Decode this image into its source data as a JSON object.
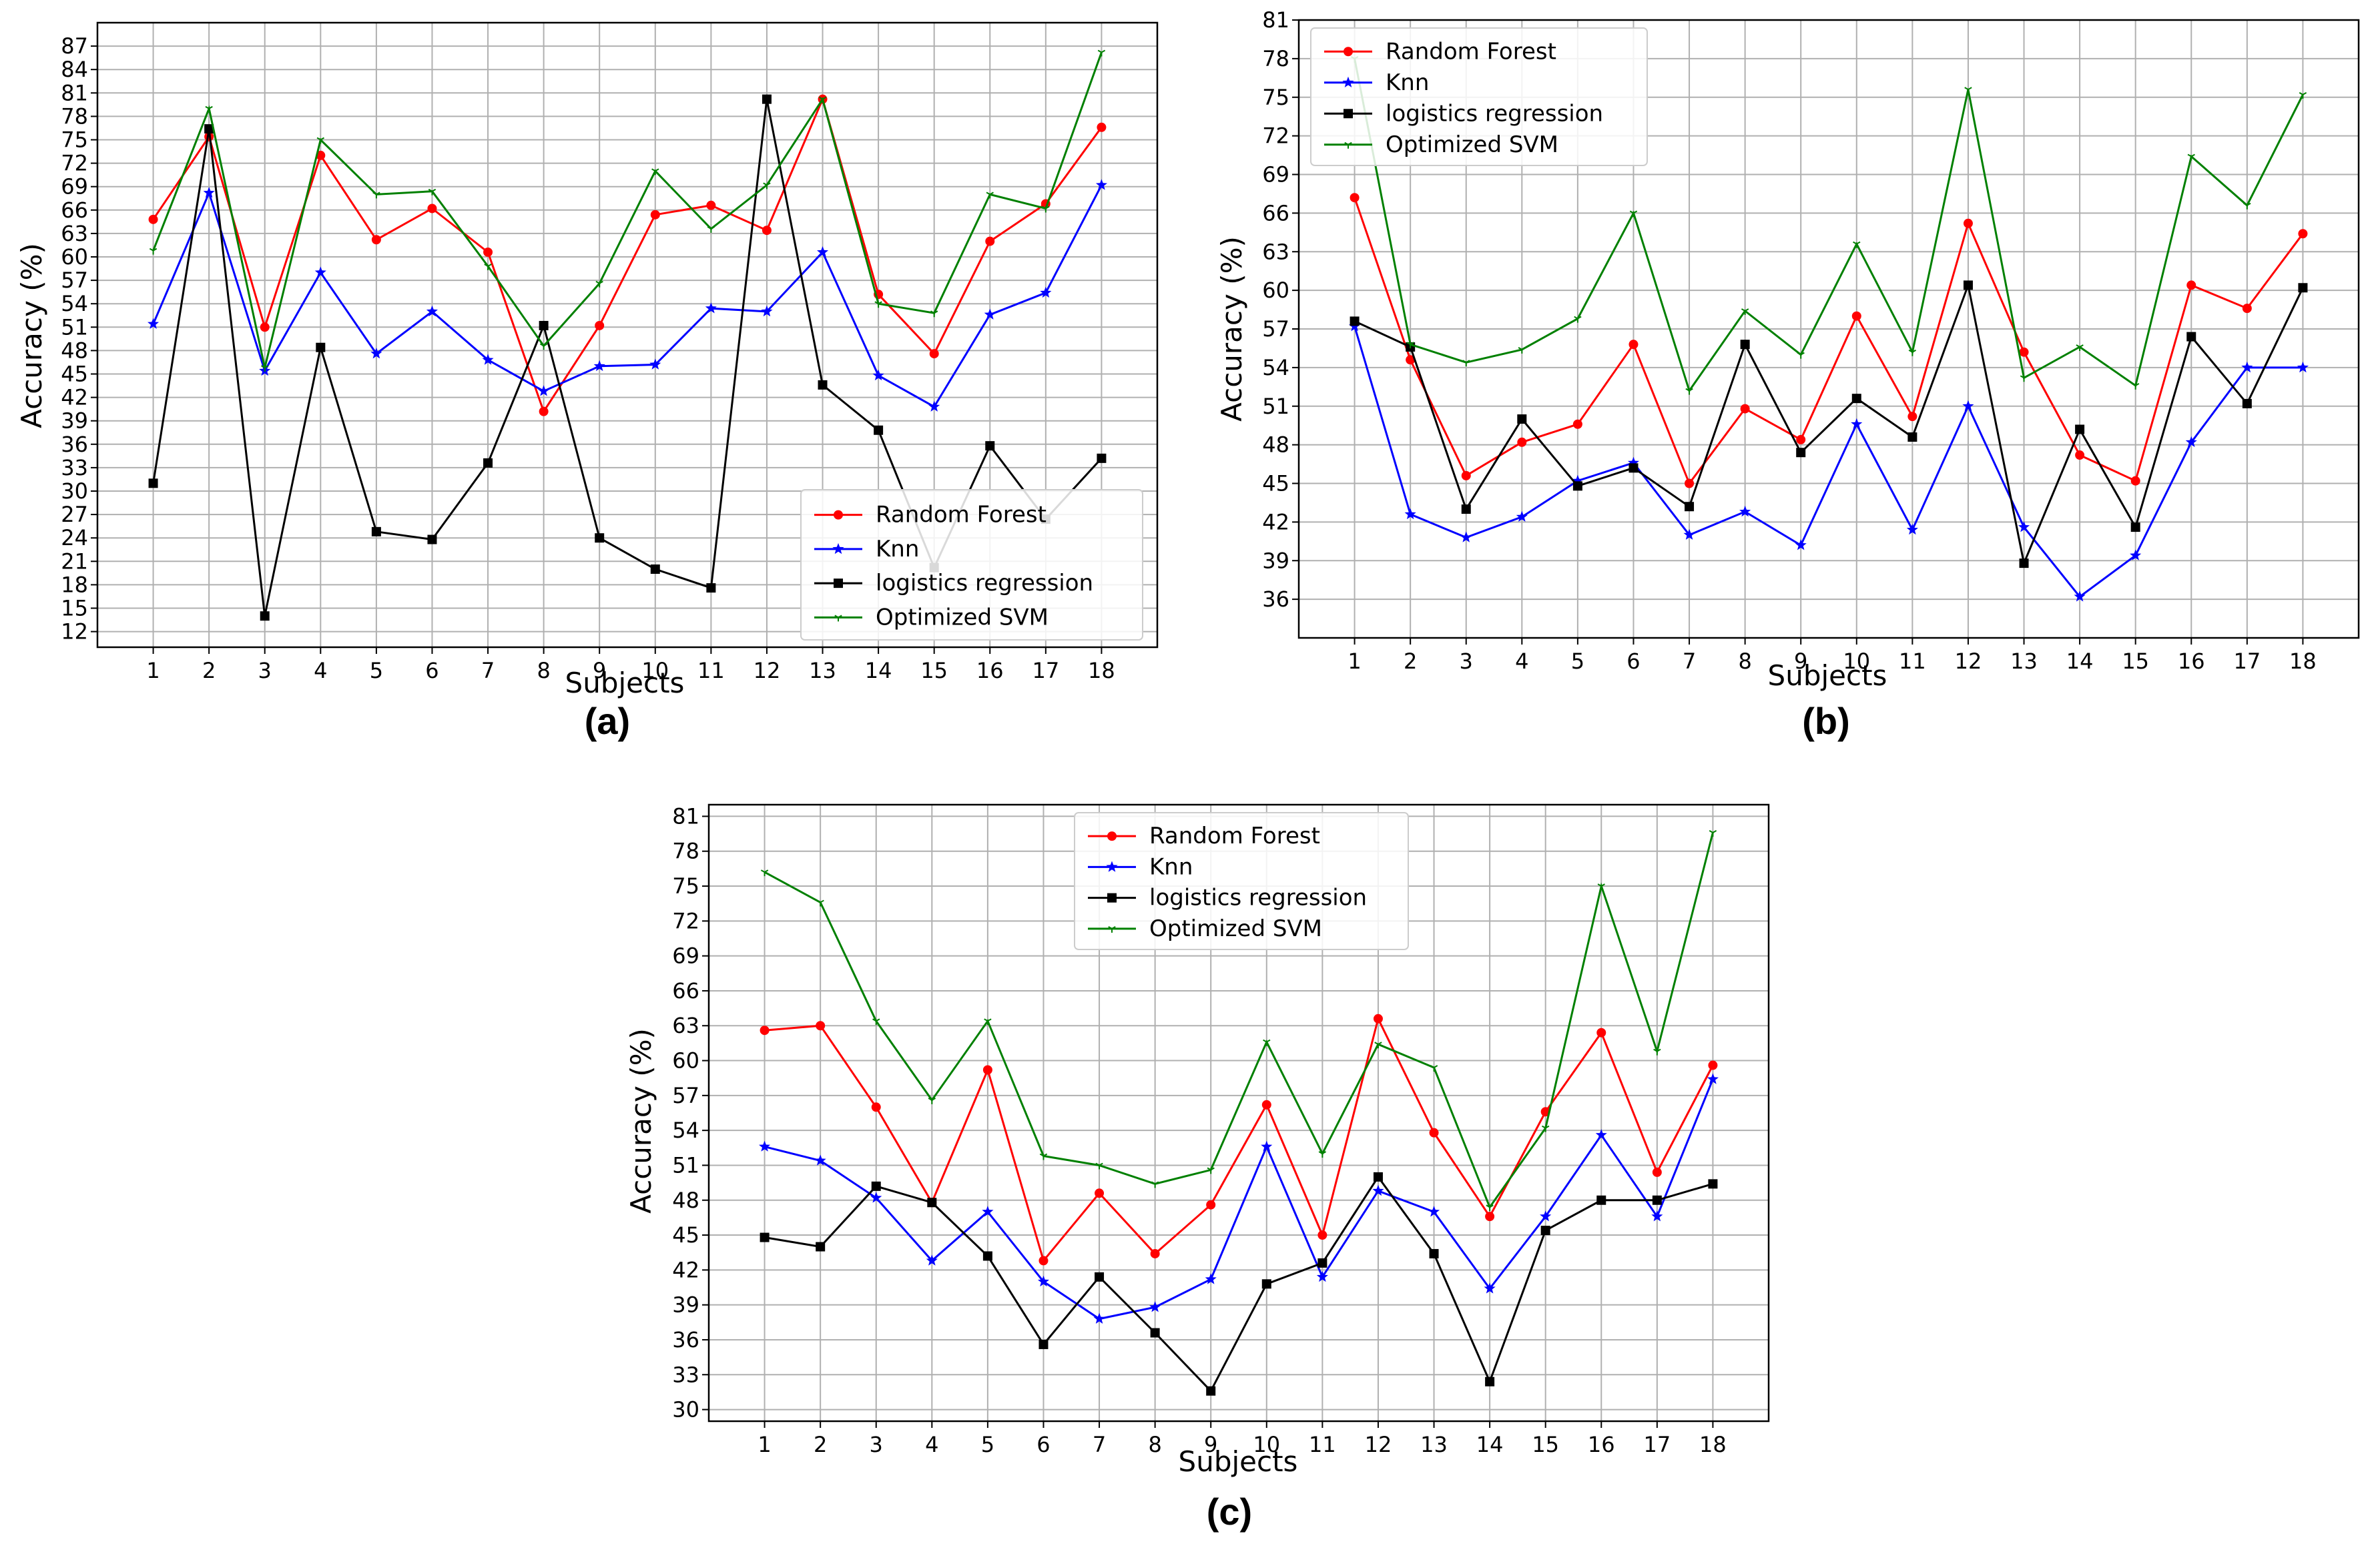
{
  "chart_data": [
    {
      "type": "line",
      "panel_label": "(a)",
      "xlabel": "Subjects",
      "ylabel": "Accuracy (%)",
      "categories": [
        "1",
        "2",
        "3",
        "4",
        "5",
        "6",
        "7",
        "8",
        "9",
        "10",
        "11",
        "12",
        "13",
        "14",
        "15",
        "16",
        "17",
        "18"
      ],
      "yticks": [
        "12",
        "15",
        "18",
        "21",
        "24",
        "27",
        "30",
        "33",
        "36",
        "39",
        "42",
        "45",
        "48",
        "51",
        "54",
        "57",
        "60",
        "63",
        "66",
        "69",
        "72",
        "75",
        "78",
        "81",
        "84",
        "87"
      ],
      "ylim": [
        10,
        90
      ],
      "grid": true,
      "legend_position": "lower-right",
      "series": [
        {
          "name": "Random Forest",
          "color": "#ff0000",
          "marker": "circle",
          "values": [
            64.8,
            75.4,
            51.0,
            73.0,
            62.2,
            66.2,
            60.6,
            40.2,
            51.2,
            65.4,
            66.6,
            63.4,
            80.2,
            55.2,
            47.6,
            62.0,
            66.8,
            76.6
          ]
        },
        {
          "name": "Knn",
          "color": "#0000ff",
          "marker": "star",
          "values": [
            51.4,
            68.2,
            45.4,
            58.0,
            47.6,
            53.0,
            46.8,
            42.8,
            46.0,
            46.2,
            53.4,
            53.0,
            60.6,
            44.8,
            40.8,
            52.6,
            55.4,
            69.2
          ]
        },
        {
          "name": "logistics regression",
          "color": "#000000",
          "marker": "square",
          "values": [
            31.0,
            76.4,
            14.0,
            48.4,
            24.8,
            23.8,
            33.6,
            51.2,
            24.0,
            20.0,
            17.6,
            80.2,
            43.6,
            37.8,
            20.2,
            35.8,
            26.4,
            34.2
          ]
        },
        {
          "name": "Optimized SVM",
          "color": "#008000",
          "marker": "tri",
          "values": [
            60.8,
            79.0,
            45.8,
            75.0,
            68.0,
            68.4,
            58.8,
            48.6,
            56.6,
            71.0,
            63.6,
            69.2,
            80.2,
            54.0,
            52.8,
            68.0,
            66.2,
            86.2
          ]
        }
      ]
    },
    {
      "type": "line",
      "panel_label": "(b)",
      "xlabel": "Subjects",
      "ylabel": "Accuracy (%)",
      "categories": [
        "1",
        "2",
        "3",
        "4",
        "5",
        "6",
        "7",
        "8",
        "9",
        "10",
        "11",
        "12",
        "13",
        "14",
        "15",
        "16",
        "17",
        "18"
      ],
      "yticks": [
        "36",
        "39",
        "42",
        "45",
        "48",
        "51",
        "54",
        "57",
        "60",
        "63",
        "66",
        "69",
        "72",
        "75",
        "78",
        "81"
      ],
      "ylim": [
        33,
        81
      ],
      "grid": true,
      "legend_position": "top-left",
      "series": [
        {
          "name": "Random Forest",
          "color": "#ff0000",
          "marker": "circle",
          "values": [
            67.2,
            54.6,
            45.6,
            48.2,
            49.6,
            55.8,
            45.0,
            50.8,
            48.4,
            58.0,
            50.2,
            65.2,
            55.2,
            47.2,
            45.2,
            60.4,
            58.6,
            64.4
          ]
        },
        {
          "name": "Knn",
          "color": "#0000ff",
          "marker": "star",
          "values": [
            57.2,
            42.6,
            40.8,
            42.4,
            45.2,
            46.6,
            41.0,
            42.8,
            40.2,
            49.6,
            41.4,
            51.0,
            41.6,
            36.2,
            39.4,
            48.2,
            54.0,
            54.0
          ]
        },
        {
          "name": "logistics regression",
          "color": "#000000",
          "marker": "square",
          "values": [
            57.6,
            55.6,
            43.0,
            50.0,
            44.8,
            46.2,
            43.2,
            55.8,
            47.4,
            51.6,
            48.6,
            60.4,
            38.8,
            49.2,
            41.6,
            56.4,
            51.2,
            60.2
          ]
        },
        {
          "name": "Optimized SVM",
          "color": "#008000",
          "marker": "tri",
          "values": [
            78.0,
            55.8,
            54.4,
            55.4,
            57.8,
            66.0,
            52.2,
            58.4,
            55.0,
            63.6,
            55.2,
            75.6,
            53.2,
            55.6,
            52.6,
            70.4,
            66.6,
            75.2
          ]
        }
      ]
    },
    {
      "type": "line",
      "panel_label": "(c)",
      "xlabel": "Subjects",
      "ylabel": "Accuracy (%)",
      "categories": [
        "1",
        "2",
        "3",
        "4",
        "5",
        "6",
        "7",
        "8",
        "9",
        "10",
        "11",
        "12",
        "13",
        "14",
        "15",
        "16",
        "17",
        "18"
      ],
      "yticks": [
        "30",
        "33",
        "36",
        "39",
        "42",
        "45",
        "48",
        "51",
        "54",
        "57",
        "60",
        "63",
        "66",
        "69",
        "72",
        "75",
        "78",
        "81"
      ],
      "ylim": [
        29,
        82
      ],
      "grid": true,
      "legend_position": "top-center",
      "series": [
        {
          "name": "Random Forest",
          "color": "#ff0000",
          "marker": "circle",
          "values": [
            62.6,
            63.0,
            56.0,
            47.8,
            59.2,
            42.8,
            48.6,
            43.4,
            47.6,
            56.2,
            45.0,
            63.6,
            53.8,
            46.6,
            55.6,
            62.4,
            50.4,
            59.6
          ]
        },
        {
          "name": "Knn",
          "color": "#0000ff",
          "marker": "star",
          "values": [
            52.6,
            51.4,
            48.2,
            42.8,
            47.0,
            41.0,
            37.8,
            38.8,
            41.2,
            52.6,
            41.4,
            48.8,
            47.0,
            40.4,
            46.6,
            53.6,
            46.6,
            58.4
          ]
        },
        {
          "name": "logistics regression",
          "color": "#000000",
          "marker": "square",
          "values": [
            44.8,
            44.0,
            49.2,
            47.8,
            43.2,
            35.6,
            41.4,
            36.6,
            31.6,
            40.8,
            42.6,
            50.0,
            43.4,
            32.4,
            45.4,
            48.0,
            48.0,
            49.4
          ]
        },
        {
          "name": "Optimized SVM",
          "color": "#008000",
          "marker": "tri",
          "values": [
            76.2,
            73.6,
            63.4,
            56.6,
            63.4,
            51.8,
            51.0,
            49.4,
            50.6,
            61.6,
            52.0,
            61.4,
            59.4,
            47.4,
            54.2,
            75.0,
            60.8,
            79.6
          ]
        }
      ]
    }
  ]
}
